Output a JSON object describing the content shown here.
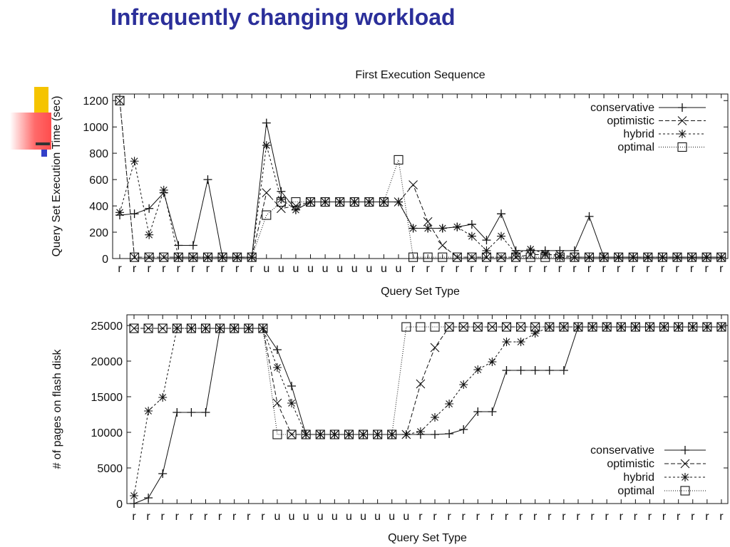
{
  "slide": {
    "title": "Infrequently changing workload"
  },
  "colors": {
    "title": "#2b2f9a",
    "line": "#111111"
  },
  "chart_data": [
    {
      "type": "line",
      "title": "First Execution Sequence",
      "xlabel": "Query Set Type",
      "ylabel": "Query Set Execution Time (sec)",
      "ylim": [
        0,
        1250
      ],
      "yticks": [
        0,
        200,
        400,
        600,
        800,
        1000,
        1200
      ],
      "legend_position": "top-right",
      "categories": [
        "r",
        "r",
        "r",
        "r",
        "r",
        "r",
        "r",
        "r",
        "r",
        "r",
        "u",
        "u",
        "u",
        "u",
        "u",
        "u",
        "u",
        "u",
        "u",
        "u",
        "r",
        "r",
        "r",
        "r",
        "r",
        "r",
        "r",
        "r",
        "r",
        "r",
        "r",
        "r",
        "r",
        "r",
        "r",
        "r",
        "r",
        "r",
        "r",
        "r",
        "r",
        "r"
      ],
      "series": [
        {
          "name": "conservative",
          "style": "solid",
          "marker": "plus",
          "values": [
            330,
            340,
            380,
            500,
            100,
            100,
            600,
            10,
            10,
            10,
            1030,
            510,
            370,
            430,
            430,
            430,
            430,
            430,
            430,
            430,
            230,
            230,
            230,
            240,
            260,
            140,
            340,
            60,
            60,
            60,
            60,
            60,
            320,
            10,
            10,
            10,
            10,
            10,
            10,
            10,
            10,
            10
          ]
        },
        {
          "name": "optimistic",
          "style": "dashed",
          "marker": "x",
          "values": [
            1200,
            10,
            10,
            10,
            10,
            10,
            10,
            10,
            10,
            10,
            500,
            380,
            400,
            430,
            430,
            430,
            430,
            430,
            430,
            430,
            560,
            280,
            100,
            10,
            10,
            10,
            10,
            10,
            30,
            30,
            30,
            10,
            10,
            10,
            10,
            10,
            10,
            10,
            10,
            10,
            10,
            10
          ]
        },
        {
          "name": "hybrid",
          "style": "dashdot",
          "marker": "star",
          "values": [
            350,
            740,
            180,
            520,
            10,
            10,
            10,
            10,
            10,
            10,
            860,
            450,
            370,
            430,
            430,
            430,
            430,
            430,
            430,
            430,
            230,
            230,
            230,
            240,
            170,
            60,
            170,
            40,
            70,
            40,
            10,
            10,
            10,
            10,
            10,
            10,
            10,
            10,
            10,
            10,
            10,
            10
          ]
        },
        {
          "name": "optimal",
          "style": "dotted",
          "marker": "square",
          "values": [
            1200,
            10,
            10,
            10,
            10,
            10,
            10,
            10,
            10,
            10,
            330,
            430,
            430,
            430,
            430,
            430,
            430,
            430,
            430,
            750,
            10,
            10,
            10,
            10,
            10,
            10,
            10,
            10,
            10,
            10,
            10,
            10,
            10,
            10,
            10,
            10,
            10,
            10,
            10,
            10,
            10,
            10
          ]
        }
      ],
      "grid": false
    },
    {
      "type": "line",
      "xlabel": "Query Set Type",
      "ylabel": "# of pages on flash disk",
      "ylim": [
        0,
        26500
      ],
      "yticks": [
        0,
        5000,
        10000,
        15000,
        20000,
        25000
      ],
      "legend_position": "bottom-right",
      "categories": [
        "r",
        "r",
        "r",
        "r",
        "r",
        "r",
        "r",
        "r",
        "r",
        "r",
        "u",
        "u",
        "u",
        "u",
        "u",
        "u",
        "u",
        "u",
        "u",
        "u",
        "r",
        "r",
        "r",
        "r",
        "r",
        "r",
        "r",
        "r",
        "r",
        "r",
        "r",
        "r",
        "r",
        "r",
        "r",
        "r",
        "r",
        "r",
        "r",
        "r",
        "r",
        "r"
      ],
      "series": [
        {
          "name": "conservative",
          "style": "solid",
          "marker": "plus",
          "values": [
            0,
            800,
            4200,
            12800,
            12800,
            12800,
            24600,
            24600,
            24600,
            24600,
            21600,
            16500,
            9700,
            9700,
            9700,
            9700,
            9700,
            9700,
            9700,
            9700,
            9700,
            9700,
            9800,
            10400,
            12900,
            12900,
            18700,
            18700,
            18700,
            18700,
            18700,
            24800,
            24800,
            24800,
            24800,
            24800,
            24800,
            24800,
            24800,
            24800,
            24800,
            24800
          ]
        },
        {
          "name": "optimistic",
          "style": "dashed",
          "marker": "x",
          "values": [
            24600,
            24600,
            24600,
            24600,
            24600,
            24600,
            24600,
            24600,
            24600,
            24600,
            14100,
            9700,
            9700,
            9700,
            9700,
            9700,
            9700,
            9700,
            9700,
            9700,
            16800,
            21900,
            24800,
            24800,
            24800,
            24800,
            24800,
            24800,
            24800,
            24800,
            24800,
            24800,
            24800,
            24800,
            24800,
            24800,
            24800,
            24800,
            24800,
            24800,
            24800,
            24800
          ]
        },
        {
          "name": "hybrid",
          "style": "dashdot",
          "marker": "star",
          "values": [
            1100,
            13000,
            14900,
            24600,
            24600,
            24600,
            24600,
            24600,
            24600,
            24600,
            19100,
            14100,
            9700,
            9700,
            9700,
            9700,
            9700,
            9700,
            9700,
            9700,
            10100,
            12100,
            14000,
            16700,
            18800,
            19900,
            22700,
            22700,
            23900,
            24800,
            24800,
            24800,
            24800,
            24800,
            24800,
            24800,
            24800,
            24800,
            24800,
            24800,
            24800,
            24800
          ]
        },
        {
          "name": "optimal",
          "style": "dotted",
          "marker": "square",
          "values": [
            24600,
            24600,
            24600,
            24600,
            24600,
            24600,
            24600,
            24600,
            24600,
            24600,
            9700,
            9700,
            9700,
            9700,
            9700,
            9700,
            9700,
            9700,
            9700,
            24800,
            24800,
            24800,
            24800,
            24800,
            24800,
            24800,
            24800,
            24800,
            24800,
            24800,
            24800,
            24800,
            24800,
            24800,
            24800,
            24800,
            24800,
            24800,
            24800,
            24800,
            24800,
            24800
          ]
        }
      ],
      "grid": false
    }
  ]
}
